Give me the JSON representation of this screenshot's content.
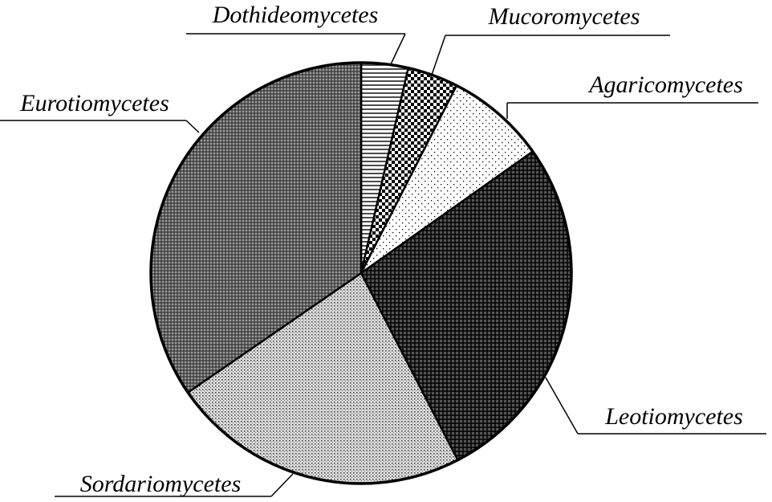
{
  "chart_data": {
    "type": "pie",
    "categories": [
      "Dothideomycetes",
      "Mucoromycetes",
      "Agaricomycetes",
      "Leotiomycetes",
      "Sordariomycetes",
      "Eurotiomycetes"
    ],
    "values": [
      3.6,
      3.9,
      7.7,
      27.2,
      23.0,
      34.6
    ]
  }
}
